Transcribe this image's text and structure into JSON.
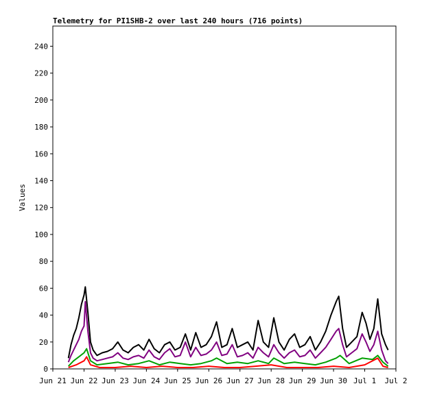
{
  "chart_data": {
    "type": "line",
    "title": "Telemetry for PI1SHB-2 over last 240 hours (716 points)",
    "ylabel": "Values",
    "xlabel": "",
    "ylim": [
      0,
      255
    ],
    "yticks": [
      0,
      20,
      40,
      60,
      80,
      100,
      120,
      140,
      160,
      180,
      200,
      220,
      240
    ],
    "xlim": [
      "2024-06-21 00:00",
      "2024-07-02 00:00"
    ],
    "xticks": [
      {
        "date": "2024-06-21 00:00",
        "label": "Jun 21"
      },
      {
        "date": "2024-06-22 00:00",
        "label": "Jun 22"
      },
      {
        "date": "2024-06-23 00:00",
        "label": "Jun 23"
      },
      {
        "date": "2024-06-24 00:00",
        "label": "Jun 24"
      },
      {
        "date": "2024-06-25 00:00",
        "label": "Jun 25"
      },
      {
        "date": "2024-06-26 00:00",
        "label": "Jun 26"
      },
      {
        "date": "2024-06-27 00:00",
        "label": "Jun 27"
      },
      {
        "date": "2024-06-28 00:00",
        "label": "Jun 28"
      },
      {
        "date": "2024-06-29 00:00",
        "label": "Jun 29"
      },
      {
        "date": "2024-06-30 00:00",
        "label": "Jun 30"
      },
      {
        "date": "2024-07-01 00:00",
        "label": "Jul 1"
      },
      {
        "date": "2024-07-02 00:00",
        "label": "Jul 2"
      }
    ],
    "grid": false,
    "legend": "none",
    "series": [
      {
        "color": "#000000",
        "points": [
          [
            "2024-06-21 12:00",
            8
          ],
          [
            "2024-06-21 14:00",
            18
          ],
          [
            "2024-06-21 16:00",
            25
          ],
          [
            "2024-06-21 18:00",
            30
          ],
          [
            "2024-06-21 20:00",
            38
          ],
          [
            "2024-06-21 22:00",
            48
          ],
          [
            "2024-06-22 00:00",
            55
          ],
          [
            "2024-06-22 01:00",
            61
          ],
          [
            "2024-06-22 03:00",
            42
          ],
          [
            "2024-06-22 05:00",
            20
          ],
          [
            "2024-06-22 07:00",
            14
          ],
          [
            "2024-06-22 10:00",
            10
          ],
          [
            "2024-06-22 14:00",
            12
          ],
          [
            "2024-06-22 18:00",
            13
          ],
          [
            "2024-06-22 22:00",
            15
          ],
          [
            "2024-06-23 02:00",
            20
          ],
          [
            "2024-06-23 06:00",
            14
          ],
          [
            "2024-06-23 10:00",
            12
          ],
          [
            "2024-06-23 14:00",
            16
          ],
          [
            "2024-06-23 18:00",
            18
          ],
          [
            "2024-06-23 22:00",
            14
          ],
          [
            "2024-06-24 02:00",
            22
          ],
          [
            "2024-06-24 06:00",
            15
          ],
          [
            "2024-06-24 10:00",
            12
          ],
          [
            "2024-06-24 14:00",
            18
          ],
          [
            "2024-06-24 18:00",
            20
          ],
          [
            "2024-06-24 22:00",
            14
          ],
          [
            "2024-06-25 02:00",
            16
          ],
          [
            "2024-06-25 06:00",
            26
          ],
          [
            "2024-06-25 10:00",
            14
          ],
          [
            "2024-06-25 14:00",
            27
          ],
          [
            "2024-06-25 18:00",
            16
          ],
          [
            "2024-06-25 22:00",
            18
          ],
          [
            "2024-06-26 02:00",
            24
          ],
          [
            "2024-06-26 06:00",
            35
          ],
          [
            "2024-06-26 10:00",
            16
          ],
          [
            "2024-06-26 14:00",
            18
          ],
          [
            "2024-06-26 18:00",
            30
          ],
          [
            "2024-06-26 22:00",
            16
          ],
          [
            "2024-06-27 02:00",
            18
          ],
          [
            "2024-06-27 06:00",
            20
          ],
          [
            "2024-06-27 10:00",
            14
          ],
          [
            "2024-06-27 14:00",
            36
          ],
          [
            "2024-06-27 18:00",
            20
          ],
          [
            "2024-06-27 22:00",
            16
          ],
          [
            "2024-06-28 02:00",
            38
          ],
          [
            "2024-06-28 06:00",
            20
          ],
          [
            "2024-06-28 10:00",
            14
          ],
          [
            "2024-06-28 14:00",
            22
          ],
          [
            "2024-06-28 18:00",
            26
          ],
          [
            "2024-06-28 22:00",
            16
          ],
          [
            "2024-06-29 02:00",
            18
          ],
          [
            "2024-06-29 06:00",
            24
          ],
          [
            "2024-06-29 10:00",
            14
          ],
          [
            "2024-06-29 14:00",
            20
          ],
          [
            "2024-06-29 18:00",
            28
          ],
          [
            "2024-06-29 22:00",
            40
          ],
          [
            "2024-06-30 02:00",
            50
          ],
          [
            "2024-06-30 04:00",
            54
          ],
          [
            "2024-06-30 07:00",
            30
          ],
          [
            "2024-06-30 10:00",
            16
          ],
          [
            "2024-06-30 14:00",
            20
          ],
          [
            "2024-06-30 18:00",
            24
          ],
          [
            "2024-06-30 22:00",
            42
          ],
          [
            "2024-07-01 01:00",
            34
          ],
          [
            "2024-07-01 04:00",
            22
          ],
          [
            "2024-07-01 07:00",
            30
          ],
          [
            "2024-07-01 10:00",
            52
          ],
          [
            "2024-07-01 13:00",
            26
          ],
          [
            "2024-07-01 16:00",
            18
          ],
          [
            "2024-07-01 18:00",
            14
          ]
        ]
      },
      {
        "color": "#800080",
        "points": [
          [
            "2024-06-21 12:00",
            5
          ],
          [
            "2024-06-21 14:00",
            10
          ],
          [
            "2024-06-21 16:00",
            14
          ],
          [
            "2024-06-21 18:00",
            18
          ],
          [
            "2024-06-21 20:00",
            22
          ],
          [
            "2024-06-21 22:00",
            28
          ],
          [
            "2024-06-22 00:00",
            32
          ],
          [
            "2024-06-22 01:00",
            50
          ],
          [
            "2024-06-22 03:00",
            28
          ],
          [
            "2024-06-22 05:00",
            12
          ],
          [
            "2024-06-22 07:00",
            8
          ],
          [
            "2024-06-22 10:00",
            6
          ],
          [
            "2024-06-22 14:00",
            7
          ],
          [
            "2024-06-22 18:00",
            8
          ],
          [
            "2024-06-22 22:00",
            9
          ],
          [
            "2024-06-23 02:00",
            12
          ],
          [
            "2024-06-23 06:00",
            8
          ],
          [
            "2024-06-23 10:00",
            7
          ],
          [
            "2024-06-23 14:00",
            9
          ],
          [
            "2024-06-23 18:00",
            10
          ],
          [
            "2024-06-23 22:00",
            8
          ],
          [
            "2024-06-24 02:00",
            14
          ],
          [
            "2024-06-24 06:00",
            9
          ],
          [
            "2024-06-24 10:00",
            7
          ],
          [
            "2024-06-24 14:00",
            12
          ],
          [
            "2024-06-24 18:00",
            15
          ],
          [
            "2024-06-24 22:00",
            9
          ],
          [
            "2024-06-25 02:00",
            10
          ],
          [
            "2024-06-25 06:00",
            20
          ],
          [
            "2024-06-25 10:00",
            9
          ],
          [
            "2024-06-25 14:00",
            16
          ],
          [
            "2024-06-25 18:00",
            10
          ],
          [
            "2024-06-25 22:00",
            11
          ],
          [
            "2024-06-26 02:00",
            14
          ],
          [
            "2024-06-26 06:00",
            20
          ],
          [
            "2024-06-26 10:00",
            10
          ],
          [
            "2024-06-26 14:00",
            11
          ],
          [
            "2024-06-26 18:00",
            18
          ],
          [
            "2024-06-26 22:00",
            9
          ],
          [
            "2024-06-27 02:00",
            10
          ],
          [
            "2024-06-27 06:00",
            12
          ],
          [
            "2024-06-27 10:00",
            8
          ],
          [
            "2024-06-27 14:00",
            16
          ],
          [
            "2024-06-27 18:00",
            12
          ],
          [
            "2024-06-27 22:00",
            9
          ],
          [
            "2024-06-28 02:00",
            18
          ],
          [
            "2024-06-28 06:00",
            12
          ],
          [
            "2024-06-28 10:00",
            8
          ],
          [
            "2024-06-28 14:00",
            12
          ],
          [
            "2024-06-28 18:00",
            14
          ],
          [
            "2024-06-28 22:00",
            9
          ],
          [
            "2024-06-29 02:00",
            10
          ],
          [
            "2024-06-29 06:00",
            14
          ],
          [
            "2024-06-29 10:00",
            8
          ],
          [
            "2024-06-29 14:00",
            12
          ],
          [
            "2024-06-29 18:00",
            16
          ],
          [
            "2024-06-29 22:00",
            22
          ],
          [
            "2024-06-30 02:00",
            28
          ],
          [
            "2024-06-30 04:00",
            30
          ],
          [
            "2024-06-30 07:00",
            18
          ],
          [
            "2024-06-30 10:00",
            9
          ],
          [
            "2024-06-30 14:00",
            12
          ],
          [
            "2024-06-30 18:00",
            15
          ],
          [
            "2024-06-30 22:00",
            26
          ],
          [
            "2024-07-01 01:00",
            20
          ],
          [
            "2024-07-01 04:00",
            13
          ],
          [
            "2024-07-01 07:00",
            18
          ],
          [
            "2024-07-01 10:00",
            28
          ],
          [
            "2024-07-01 13:00",
            14
          ],
          [
            "2024-07-01 16:00",
            6
          ],
          [
            "2024-07-01 18:00",
            4
          ]
        ]
      },
      {
        "color": "#00a000",
        "points": [
          [
            "2024-06-21 12:00",
            2
          ],
          [
            "2024-06-21 16:00",
            6
          ],
          [
            "2024-06-21 20:00",
            9
          ],
          [
            "2024-06-22 00:00",
            12
          ],
          [
            "2024-06-22 02:00",
            15
          ],
          [
            "2024-06-22 05:00",
            6
          ],
          [
            "2024-06-22 10:00",
            3
          ],
          [
            "2024-06-22 18:00",
            4
          ],
          [
            "2024-06-23 02:00",
            5
          ],
          [
            "2024-06-23 10:00",
            3
          ],
          [
            "2024-06-23 18:00",
            4
          ],
          [
            "2024-06-24 02:00",
            6
          ],
          [
            "2024-06-24 10:00",
            3
          ],
          [
            "2024-06-24 18:00",
            5
          ],
          [
            "2024-06-25 02:00",
            4
          ],
          [
            "2024-06-25 10:00",
            3
          ],
          [
            "2024-06-25 18:00",
            4
          ],
          [
            "2024-06-26 02:00",
            6
          ],
          [
            "2024-06-26 06:00",
            8
          ],
          [
            "2024-06-26 14:00",
            4
          ],
          [
            "2024-06-26 22:00",
            5
          ],
          [
            "2024-06-27 06:00",
            4
          ],
          [
            "2024-06-27 14:00",
            6
          ],
          [
            "2024-06-27 22:00",
            4
          ],
          [
            "2024-06-28 02:00",
            8
          ],
          [
            "2024-06-28 10:00",
            4
          ],
          [
            "2024-06-28 18:00",
            5
          ],
          [
            "2024-06-29 02:00",
            4
          ],
          [
            "2024-06-29 10:00",
            3
          ],
          [
            "2024-06-29 18:00",
            5
          ],
          [
            "2024-06-30 02:00",
            8
          ],
          [
            "2024-06-30 05:00",
            10
          ],
          [
            "2024-06-30 12:00",
            4
          ],
          [
            "2024-06-30 22:00",
            8
          ],
          [
            "2024-07-01 06:00",
            7
          ],
          [
            "2024-07-01 10:00",
            10
          ],
          [
            "2024-07-01 14:00",
            5
          ],
          [
            "2024-07-01 18:00",
            2
          ]
        ]
      },
      {
        "color": "#ff0000",
        "points": [
          [
            "2024-06-21 12:00",
            1
          ],
          [
            "2024-06-21 18:00",
            3
          ],
          [
            "2024-06-22 00:00",
            6
          ],
          [
            "2024-06-22 02:00",
            9
          ],
          [
            "2024-06-22 05:00",
            3
          ],
          [
            "2024-06-22 12:00",
            1
          ],
          [
            "2024-06-23 00:00",
            1
          ],
          [
            "2024-06-23 12:00",
            2
          ],
          [
            "2024-06-24 00:00",
            1
          ],
          [
            "2024-06-24 12:00",
            2
          ],
          [
            "2024-06-25 00:00",
            1
          ],
          [
            "2024-06-25 12:00",
            1
          ],
          [
            "2024-06-26 00:00",
            2
          ],
          [
            "2024-06-26 12:00",
            1
          ],
          [
            "2024-06-27 00:00",
            1
          ],
          [
            "2024-06-27 12:00",
            2
          ],
          [
            "2024-06-28 00:00",
            3
          ],
          [
            "2024-06-28 12:00",
            1
          ],
          [
            "2024-06-29 00:00",
            1
          ],
          [
            "2024-06-29 12:00",
            1
          ],
          [
            "2024-06-30 00:00",
            2
          ],
          [
            "2024-06-30 12:00",
            1
          ],
          [
            "2024-07-01 00:00",
            3
          ],
          [
            "2024-07-01 10:00",
            8
          ],
          [
            "2024-07-01 14:00",
            2
          ],
          [
            "2024-07-01 18:00",
            1
          ]
        ]
      }
    ]
  }
}
